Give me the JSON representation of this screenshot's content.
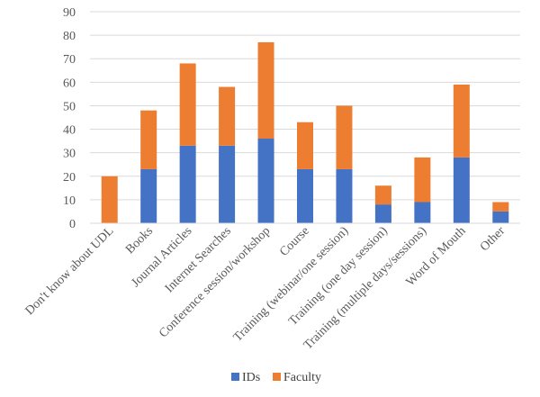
{
  "chart_data": {
    "type": "bar",
    "stacked": true,
    "categories": [
      "Don't know about UDL",
      "Books",
      "Journal Articles",
      "Internet Searches",
      "Conference session/workshop",
      "Course",
      "Training (webinar/one session)",
      "Training (one day session)",
      "Training (multiple days/sessions)",
      "Word of Mouth",
      "Other"
    ],
    "series": [
      {
        "name": "IDs",
        "color": "#4472C4",
        "values": [
          0,
          23,
          33,
          33,
          36,
          23,
          23,
          8,
          9,
          28,
          5
        ]
      },
      {
        "name": "Faculty",
        "color": "#ED7D31",
        "values": [
          20,
          25,
          35,
          25,
          41,
          20,
          27,
          8,
          19,
          31,
          4
        ]
      }
    ],
    "yticks": [
      "0",
      "10",
      "20",
      "30",
      "40",
      "50",
      "60",
      "70",
      "80",
      "90"
    ],
    "ylim": [
      0,
      90
    ],
    "grid": true,
    "legend_position": "bottom"
  }
}
